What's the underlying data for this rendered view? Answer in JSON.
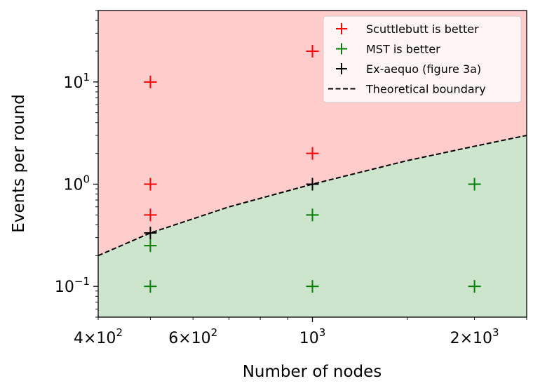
{
  "chart_data": {
    "type": "scatter",
    "xlabel": "Number of nodes",
    "ylabel": "Events per round",
    "xscale": "log",
    "yscale": "log",
    "xlim": [
      400,
      2500
    ],
    "ylim": [
      0.05,
      50
    ],
    "xticks": [
      {
        "value": 400,
        "base": "4",
        "sep": "×",
        "exp_base": "10",
        "exp": "2"
      },
      {
        "value": 600,
        "base": "6",
        "sep": "×",
        "exp_base": "10",
        "exp": "2"
      },
      {
        "value": 1000,
        "base": "",
        "sep": "",
        "exp_base": "10",
        "exp": "3"
      },
      {
        "value": 2000,
        "base": "2",
        "sep": "×",
        "exp_base": "10",
        "exp": "3"
      }
    ],
    "yticks": [
      {
        "value": 0.1,
        "base": "10",
        "exp": "−1"
      },
      {
        "value": 1,
        "base": "10",
        "exp": "0"
      },
      {
        "value": 10,
        "base": "10",
        "exp": "1"
      }
    ],
    "grid": false,
    "legend_position": "top-right",
    "regions": [
      {
        "name": "scuttlebutt-region",
        "color": "#ffcccc"
      },
      {
        "name": "mst-region",
        "color": "#cce5cc"
      }
    ],
    "boundary": {
      "name": "Theoretical boundary",
      "color": "#000000",
      "style": "dashed",
      "points": [
        [
          400,
          0.2
        ],
        [
          500,
          0.333
        ],
        [
          700,
          0.6
        ],
        [
          1000,
          1.0
        ],
        [
          1500,
          1.7
        ],
        [
          2000,
          2.35
        ],
        [
          2500,
          3.0
        ]
      ]
    },
    "series": [
      {
        "name": "Scuttlebutt is better",
        "color": "#ff0000",
        "marker": "+",
        "points": [
          [
            500,
            10
          ],
          [
            500,
            1
          ],
          [
            500,
            0.5
          ],
          [
            1000,
            20
          ],
          [
            1000,
            2
          ]
        ]
      },
      {
        "name": "MST is better",
        "color": "#008000",
        "marker": "+",
        "points": [
          [
            500,
            0.25
          ],
          [
            500,
            0.1
          ],
          [
            1000,
            0.5
          ],
          [
            1000,
            0.1
          ],
          [
            2000,
            1
          ],
          [
            2000,
            0.1
          ]
        ]
      },
      {
        "name": "Ex-aequo (figure 3a)",
        "color": "#000000",
        "marker": "+",
        "points": [
          [
            500,
            0.333
          ],
          [
            1000,
            1
          ]
        ]
      }
    ]
  }
}
